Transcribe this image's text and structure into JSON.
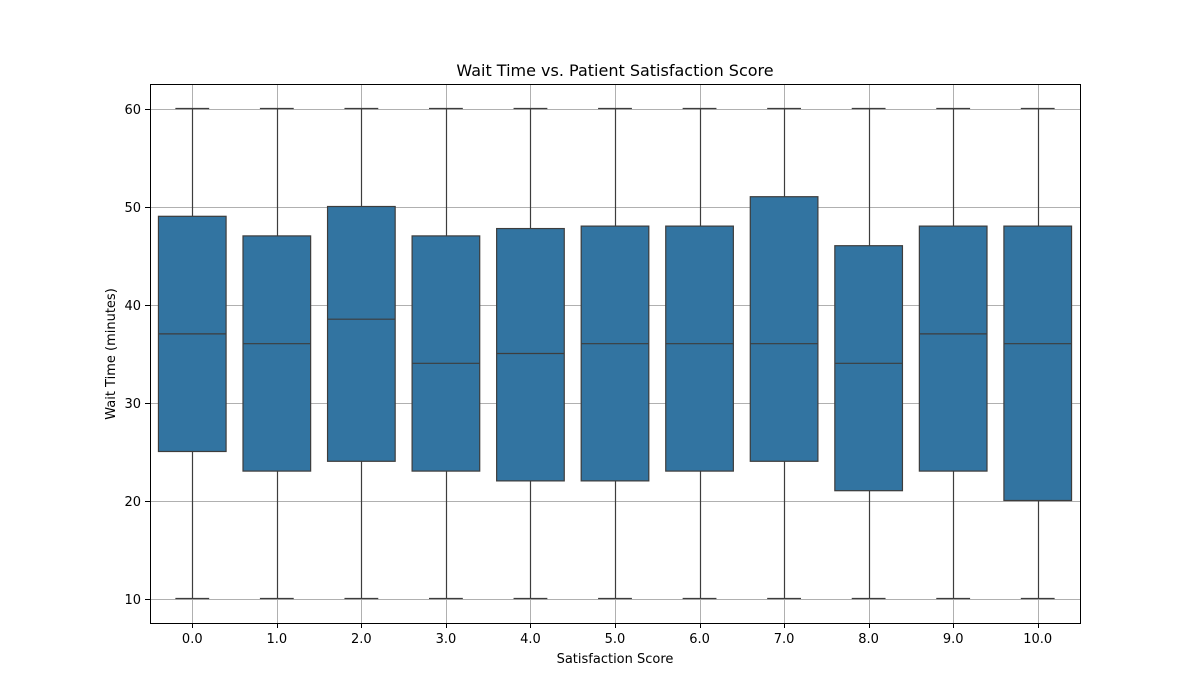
{
  "chart_data": {
    "type": "box",
    "title": "Wait Time vs. Patient Satisfaction Score",
    "xlabel": "Satisfaction Score",
    "ylabel": "Wait Time (minutes)",
    "categories": [
      "0.0",
      "1.0",
      "2.0",
      "3.0",
      "4.0",
      "5.0",
      "6.0",
      "7.0",
      "8.0",
      "9.0",
      "10.0"
    ],
    "series": [
      {
        "stats": [
          {
            "min": 10,
            "q1": 25,
            "median": 37,
            "q3": 49,
            "max": 60
          },
          {
            "min": 10,
            "q1": 23,
            "median": 36,
            "q3": 47,
            "max": 60
          },
          {
            "min": 10,
            "q1": 24,
            "median": 38.5,
            "q3": 50,
            "max": 60
          },
          {
            "min": 10,
            "q1": 23,
            "median": 34,
            "q3": 47,
            "max": 60
          },
          {
            "min": 10,
            "q1": 22,
            "median": 35,
            "q3": 47.75,
            "max": 60
          },
          {
            "min": 10,
            "q1": 22,
            "median": 36,
            "q3": 48,
            "max": 60
          },
          {
            "min": 10,
            "q1": 23,
            "median": 36,
            "q3": 48,
            "max": 60
          },
          {
            "min": 10,
            "q1": 24,
            "median": 36,
            "q3": 51,
            "max": 60
          },
          {
            "min": 10,
            "q1": 21,
            "median": 34,
            "q3": 46,
            "max": 60
          },
          {
            "min": 10,
            "q1": 23,
            "median": 37,
            "q3": 48,
            "max": 60
          },
          {
            "min": 10,
            "q1": 20,
            "median": 36,
            "q3": 48,
            "max": 60
          }
        ]
      }
    ],
    "yticks": [
      10,
      20,
      30,
      40,
      50,
      60
    ],
    "ylim": [
      7.5,
      62.5
    ],
    "grid": true,
    "colors": {
      "box_fill": "#3274a1",
      "box_edge": "#3d3d3d",
      "grid": "#b0b0b0",
      "axis": "#000000"
    }
  }
}
